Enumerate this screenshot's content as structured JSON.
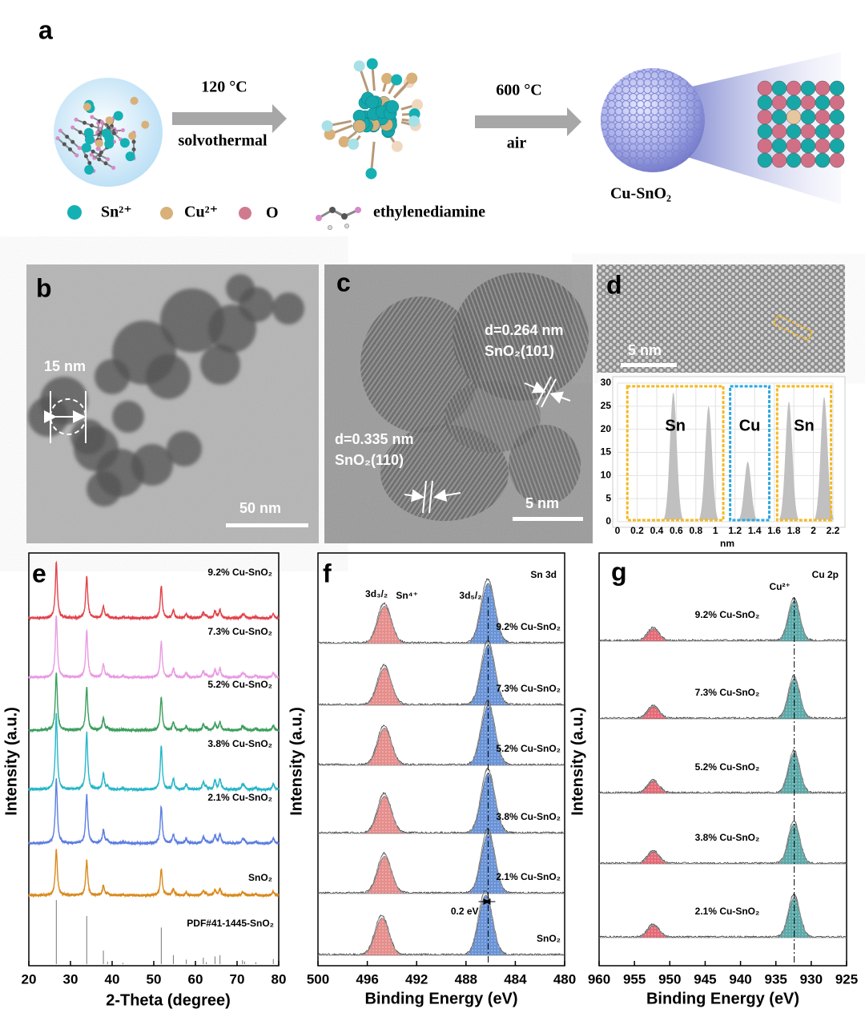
{
  "panel_a": {
    "label": "a",
    "step1_temp": "120 °C",
    "step1_method": "solvothermal",
    "step2_temp": "600 °C",
    "step2_atm": "air",
    "product": "Cu-SnO₂",
    "legend": [
      "Sn²⁺",
      "Cu²⁺",
      "O",
      "ethylenediamine"
    ]
  },
  "panel_b": {
    "label": "b",
    "size_label": "15 nm",
    "scale_bar": "50 nm"
  },
  "panel_c": {
    "label": "c",
    "spacing_1": "d=0.264 nm",
    "plane_1": "SnO₂(101)",
    "spacing_2": "d=0.335 nm",
    "plane_2": "SnO₂(110)",
    "scale_bar": "5 nm"
  },
  "panel_d": {
    "label": "d",
    "scale_bar": "5 nm"
  },
  "panel_labels": [
    "e",
    "f",
    "g"
  ],
  "chart_data": [
    {
      "type": "profile",
      "xlabel": "nm",
      "xlim": [
        0,
        2.2
      ],
      "xticks": [
        0,
        0.2,
        0.4,
        0.6,
        0.8,
        1.0,
        1.2,
        1.4,
        1.6,
        1.8,
        2.0,
        2.2
      ],
      "ylim": [
        0,
        30
      ],
      "yticks": [
        0,
        5,
        10,
        15,
        20,
        25,
        30
      ],
      "grid": true,
      "color": "#c0c0c0",
      "x": [
        0.57,
        0.93,
        1.33,
        1.75,
        2.11
      ],
      "values": [
        28,
        25,
        13,
        26,
        27
      ],
      "regions": [
        {
          "label": "Sn",
          "range": [
            0.1,
            1.08
          ],
          "color": "#f5b820"
        },
        {
          "label": "Cu",
          "range": [
            1.15,
            1.55
          ],
          "color": "#2aa8e0"
        },
        {
          "label": "Sn",
          "range": [
            1.63,
            2.18
          ],
          "color": "#f5b820"
        }
      ]
    },
    {
      "type": "xrd",
      "xlabel": "2-Theta (degree)",
      "ylabel": "Intensity (a.u.)",
      "xlim": [
        20,
        80
      ],
      "xticks": [
        20,
        30,
        40,
        50,
        60,
        70,
        80
      ],
      "series": [
        {
          "name": "9.2% Cu-SnO₂",
          "color": "#e2434b"
        },
        {
          "name": "7.3% Cu-SnO₂",
          "color": "#e99be2"
        },
        {
          "name": "5.2% Cu-SnO₂",
          "color": "#3c9e5e"
        },
        {
          "name": "3.8% Cu-SnO₂",
          "color": "#27b6c9"
        },
        {
          "name": "2.1% Cu-SnO₂",
          "color": "#5d7ee0"
        },
        {
          "name": "SnO₂",
          "color": "#d98a1e"
        }
      ],
      "reference": {
        "name": "PDF#41-1445-SnO₂",
        "x": [
          26.6,
          33.9,
          37.9,
          38.9,
          42.6,
          51.8,
          54.7,
          57.8,
          61.9,
          62.6,
          64.7,
          65.9,
          71.3,
          71.8,
          74.5,
          78.7
        ],
        "values": [
          100,
          75,
          21,
          4,
          2,
          57,
          14,
          7,
          10,
          3,
          12,
          14,
          6,
          4,
          3,
          8
        ]
      }
    },
    {
      "type": "xps",
      "region": "Sn 3d",
      "xlabel": "Binding Energy (eV)",
      "ylabel": "Intensity (a.u.)",
      "xlim": [
        500,
        480
      ],
      "xticks": [
        500,
        496,
        492,
        488,
        484,
        480
      ],
      "peak_labels": [
        "3d₃/₂",
        "Sn⁴⁺",
        "3d₅/₂"
      ],
      "colors": [
        "#e07a78",
        "#4f80cf"
      ],
      "relative_intensity": [
        0.62,
        1
      ],
      "reference_line": 486.2,
      "shift_label": "0.2 eV",
      "series": [
        {
          "name": "9.2% Cu-SnO₂",
          "peaks": [
            494.6,
            486.2
          ]
        },
        {
          "name": "7.3% Cu-SnO₂",
          "peaks": [
            494.6,
            486.2
          ]
        },
        {
          "name": "5.2% Cu-SnO₂",
          "peaks": [
            494.6,
            486.2
          ]
        },
        {
          "name": "3.8% Cu-SnO₂",
          "peaks": [
            494.6,
            486.2
          ]
        },
        {
          "name": "2.1% Cu-SnO₂",
          "peaks": [
            494.6,
            486.2
          ]
        },
        {
          "name": "SnO₂",
          "peaks": [
            494.8,
            486.4
          ]
        }
      ]
    },
    {
      "type": "xps",
      "region": "Cu 2p",
      "xlabel": "Binding Energy (eV)",
      "ylabel": "Intensity (a.u.)",
      "xlim": [
        960,
        925
      ],
      "xticks": [
        960,
        955,
        950,
        945,
        940,
        935,
        930,
        925
      ],
      "peak_labels": [
        "Cu²⁺"
      ],
      "colors": [
        "#e0505e",
        "#3e9a9a"
      ],
      "relative_intensity": [
        0.3,
        1
      ],
      "reference_line": 932.4,
      "series": [
        {
          "name": "9.2% Cu-SnO₂",
          "peaks": [
            952.3,
            932.4
          ]
        },
        {
          "name": "7.3% Cu-SnO₂",
          "peaks": [
            952.3,
            932.4
          ]
        },
        {
          "name": "5.2% Cu-SnO₂",
          "peaks": [
            952.3,
            932.4
          ]
        },
        {
          "name": "3.8% Cu-SnO₂",
          "peaks": [
            952.3,
            932.4
          ]
        },
        {
          "name": "2.1% Cu-SnO₂",
          "peaks": [
            952.3,
            932.4
          ]
        }
      ]
    }
  ]
}
